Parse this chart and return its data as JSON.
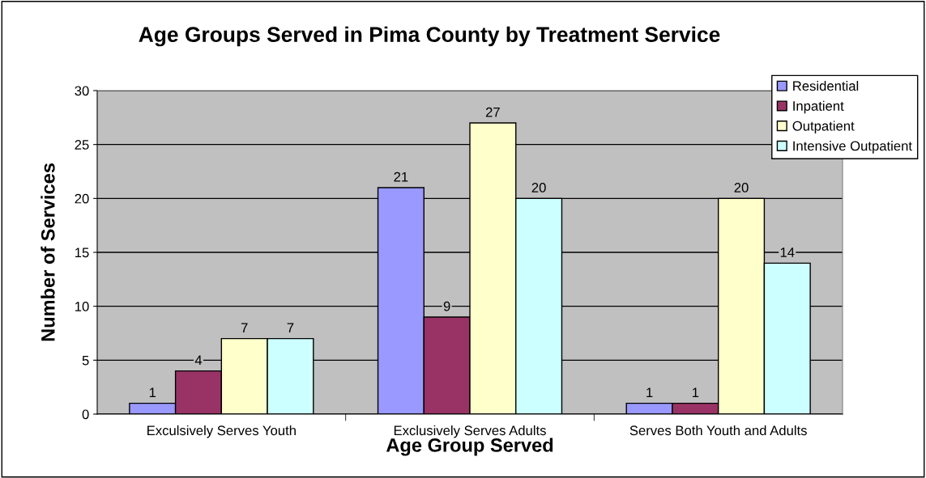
{
  "chart_data": {
    "type": "bar",
    "title": "Age Groups Served in Pima County by Treatment Service",
    "xlabel": "Age Group Served",
    "ylabel": "Number of Services",
    "categories": [
      "Exculsively Serves Youth",
      "Exclusively Serves Adults",
      "Serves Both Youth and Adults"
    ],
    "series": [
      {
        "name": "Residential",
        "color": "#9999ff",
        "values": [
          1,
          21,
          1
        ]
      },
      {
        "name": "Inpatient",
        "color": "#993366",
        "values": [
          4,
          9,
          1
        ]
      },
      {
        "name": "Outpatient",
        "color": "#ffffcc",
        "values": [
          7,
          27,
          20
        ]
      },
      {
        "name": "Intensive Outpatient",
        "color": "#ccffff",
        "values": [
          7,
          20,
          14
        ]
      }
    ],
    "ylim": [
      0,
      30
    ],
    "yticks": [
      0,
      5,
      10,
      15,
      20,
      25,
      30
    ],
    "grid": "y",
    "legend": "top right",
    "data_labels": true
  }
}
